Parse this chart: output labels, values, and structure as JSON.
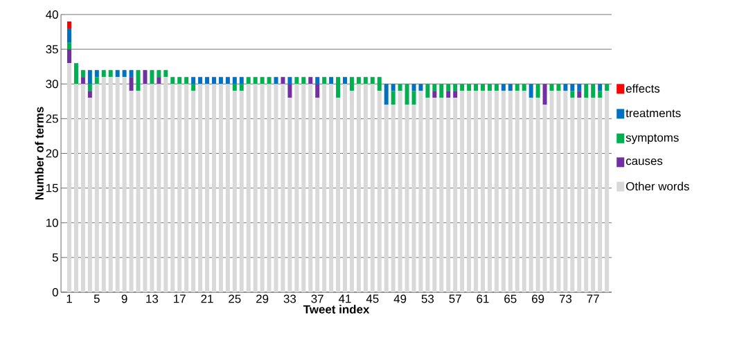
{
  "chart_data": {
    "type": "bar",
    "stacked": true,
    "xlabel": "Tweet index",
    "ylabel": "Number of terms",
    "categories": [
      "1",
      null,
      null,
      null,
      "5",
      null,
      null,
      null,
      "9",
      null,
      null,
      null,
      "13",
      null,
      null,
      null,
      "17",
      null,
      null,
      null,
      "21",
      null,
      null,
      null,
      "25",
      null,
      null,
      null,
      "29",
      null,
      null,
      null,
      "33",
      null,
      null,
      null,
      "37",
      null,
      null,
      null,
      "41",
      null,
      null,
      null,
      "45",
      null,
      null,
      null,
      "49",
      null,
      null,
      null,
      "53",
      null,
      null,
      null,
      "57",
      null,
      null,
      null,
      "61",
      null,
      null,
      null,
      "65",
      null,
      null,
      null,
      "69",
      null,
      null,
      null,
      "73",
      null,
      null,
      null,
      "77",
      null,
      null
    ],
    "series": [
      {
        "name": "Other words",
        "color": "#d9d9d9",
        "values": [
          33,
          30,
          30,
          28,
          30,
          31,
          31,
          31,
          31,
          29,
          29,
          30,
          30,
          30,
          31,
          30,
          30,
          30,
          29,
          30,
          30,
          30,
          30,
          30,
          29,
          29,
          30,
          30,
          30,
          30,
          30,
          30,
          28,
          30,
          30,
          30,
          28,
          30,
          30,
          28,
          30,
          29,
          30,
          30,
          30,
          29,
          27,
          27,
          29,
          27,
          27,
          29,
          28,
          28,
          28,
          28,
          28,
          29,
          29,
          29,
          29,
          29,
          29,
          29,
          29,
          29,
          29,
          28,
          28,
          27,
          29,
          29,
          29,
          28,
          28,
          28,
          28,
          28,
          29
        ]
      },
      {
        "name": "causes",
        "color": "#7030a0",
        "values": [
          2,
          0,
          1,
          1,
          0,
          0,
          0,
          0,
          0,
          2,
          0,
          2,
          0,
          1,
          0,
          0,
          0,
          0,
          0,
          0,
          0,
          0,
          0,
          0,
          0,
          0,
          0,
          0,
          0,
          0,
          0,
          1,
          2,
          0,
          0,
          1,
          2,
          0,
          0,
          0,
          0,
          0,
          0,
          0,
          0,
          0,
          0,
          0,
          0,
          0,
          0,
          0,
          0,
          1,
          0,
          1,
          1,
          0,
          0,
          0,
          0,
          0,
          0,
          0,
          0,
          0,
          0,
          0,
          0,
          3,
          0,
          0,
          0,
          0,
          1,
          0,
          0,
          0,
          0
        ]
      },
      {
        "name": "symptoms",
        "color": "#00b050",
        "values": [
          1,
          3,
          1,
          1,
          1,
          1,
          1,
          0,
          0,
          0,
          3,
          0,
          2,
          1,
          1,
          1,
          1,
          1,
          1,
          0,
          0,
          0,
          0,
          0,
          1,
          1,
          1,
          1,
          1,
          1,
          0,
          0,
          0,
          1,
          1,
          0,
          0,
          1,
          0,
          3,
          0,
          2,
          1,
          1,
          1,
          2,
          0,
          2,
          1,
          3,
          2,
          0,
          2,
          1,
          2,
          1,
          1,
          1,
          1,
          1,
          1,
          1,
          1,
          0,
          0,
          1,
          1,
          0,
          2,
          0,
          1,
          1,
          0,
          1,
          0,
          2,
          2,
          1,
          1
        ]
      },
      {
        "name": "treatments",
        "color": "#0070c0",
        "values": [
          2,
          0,
          0,
          2,
          1,
          0,
          0,
          1,
          1,
          1,
          0,
          0,
          0,
          0,
          0,
          0,
          0,
          0,
          1,
          1,
          1,
          1,
          1,
          1,
          1,
          1,
          0,
          0,
          0,
          0,
          1,
          0,
          1,
          0,
          0,
          0,
          1,
          0,
          1,
          0,
          1,
          0,
          0,
          0,
          0,
          0,
          3,
          1,
          0,
          0,
          1,
          1,
          0,
          0,
          0,
          0,
          0,
          0,
          0,
          0,
          0,
          0,
          0,
          1,
          1,
          0,
          0,
          2,
          0,
          0,
          0,
          0,
          1,
          1,
          1,
          0,
          0,
          1,
          0
        ]
      },
      {
        "name": "effects",
        "color": "#ff0000",
        "values": [
          1,
          0,
          0,
          0,
          0,
          0,
          0,
          0,
          0,
          0,
          0,
          0,
          0,
          0,
          0,
          0,
          0,
          0,
          0,
          0,
          0,
          0,
          0,
          0,
          0,
          0,
          0,
          0,
          0,
          0,
          0,
          0,
          0,
          0,
          0,
          0,
          0,
          0,
          0,
          0,
          0,
          0,
          0,
          0,
          0,
          0,
          0,
          0,
          0,
          0,
          0,
          0,
          0,
          0,
          0,
          0,
          0,
          0,
          0,
          0,
          0,
          0,
          0,
          0,
          0,
          0,
          0,
          0,
          0,
          0,
          0,
          0,
          0,
          0,
          0,
          0,
          0,
          0,
          0
        ]
      }
    ],
    "ylim": [
      0,
      40
    ],
    "yticks": [
      0,
      5,
      10,
      15,
      20,
      25,
      30,
      35,
      40
    ],
    "grid": "y",
    "legend": "right"
  }
}
